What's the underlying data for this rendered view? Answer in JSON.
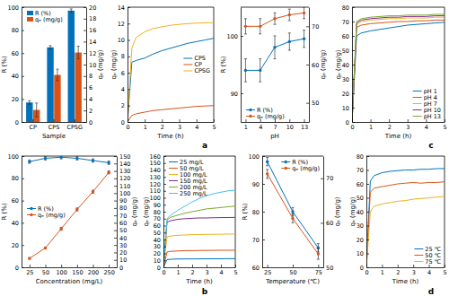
{
  "chart_data": [
    {
      "type": "bar",
      "xlabel": "Sample",
      "ylabel": "R (%)",
      "y2label": "qₑ (mg/g)",
      "categories": [
        "CP",
        "CPS",
        "CPSG"
      ],
      "ylim": [
        0,
        100
      ],
      "yticks": [
        0,
        20,
        40,
        60,
        80,
        100
      ],
      "y2lim": [
        0,
        20
      ],
      "y2ticks": [
        0,
        2,
        4,
        6,
        8,
        10,
        12,
        14,
        16,
        18,
        20
      ],
      "legend": "upper-left",
      "series": [
        {
          "name": "R (%)",
          "color": "#0072bd",
          "values": [
            17,
            65,
            97
          ],
          "errors": [
            1.5,
            1.5,
            1.5
          ]
        },
        {
          "name": "qₑ (mg/g)",
          "color": "#d95319",
          "axis": "y2",
          "values": [
            2.1,
            8.2,
            12.1
          ],
          "errors": [
            1.2,
            1,
            1.1
          ]
        }
      ]
    },
    {
      "type": "line",
      "xlabel": "Time (h)",
      "ylabel": "qₑ (mg/g)",
      "x": [
        0,
        0.25,
        0.5,
        1,
        1.5,
        2,
        2.5,
        3,
        3.5,
        4,
        4.5,
        5
      ],
      "xlim": [
        0,
        5
      ],
      "xticks": [
        0,
        1,
        2,
        3,
        4,
        5
      ],
      "ylim": [
        0,
        14
      ],
      "yticks": [
        0,
        2,
        4,
        6,
        8,
        10,
        12,
        14
      ],
      "legend": "center-right",
      "series": [
        {
          "name": "CPS",
          "color": "#0072bd",
          "values": [
            0,
            7.3,
            7.5,
            7.8,
            8.3,
            8.7,
            9.0,
            9.3,
            9.6,
            9.8,
            10.0,
            10.2
          ]
        },
        {
          "name": "CP",
          "color": "#d95319",
          "values": [
            0,
            0.8,
            1.0,
            1.2,
            1.4,
            1.5,
            1.6,
            1.7,
            1.8,
            1.9,
            1.95,
            2.0
          ]
        },
        {
          "name": "CPSG",
          "color": "#edb120",
          "values": [
            0,
            9.0,
            10.3,
            11.0,
            11.4,
            11.6,
            11.8,
            11.9,
            12.0,
            12.05,
            12.1,
            12.1
          ]
        }
      ],
      "annotations": [
        "a"
      ]
    },
    {
      "type": "line",
      "xlabel": "pH",
      "ylabel": "R (%)",
      "y2label": "qₑ (mg/g)",
      "x": [
        1,
        4,
        7,
        10,
        13
      ],
      "xlim": [
        0,
        14
      ],
      "xticks": [
        1,
        4,
        7,
        10,
        13
      ],
      "ylim": [
        85,
        105
      ],
      "yticks": [
        90,
        100
      ],
      "y2lim": [
        45,
        75
      ],
      "y2ticks": [
        50,
        60,
        70
      ],
      "legend": "lower-left",
      "series": [
        {
          "name": "R (%)",
          "color": "#0072bd",
          "marker": "circle",
          "values": [
            94,
            94,
            98,
            99,
            99.5
          ],
          "errors": [
            2,
            2,
            2,
            1.5,
            1.5
          ]
        },
        {
          "name": "qₑ (mg/g)",
          "color": "#d95319",
          "marker": "circle",
          "axis": "y2",
          "values": [
            70,
            70,
            72,
            73,
            73.5
          ],
          "errors": [
            2,
            2,
            1.5,
            1.5,
            1.5
          ]
        }
      ]
    },
    {
      "type": "line",
      "xlabel": "Time (h)",
      "ylabel": "qₑ (mg/g)",
      "x": [
        0,
        0.25,
        0.5,
        1,
        1.5,
        2,
        2.5,
        3,
        3.5,
        4,
        4.5,
        5
      ],
      "xlim": [
        0,
        5
      ],
      "xticks": [
        0,
        1,
        2,
        3,
        4,
        5
      ],
      "ylim": [
        0,
        80
      ],
      "yticks": [
        0,
        10,
        20,
        30,
        40,
        50,
        60,
        70,
        80
      ],
      "legend": "lower-right",
      "series": [
        {
          "name": "pH 1",
          "color": "#0072bd",
          "values": [
            0,
            60,
            62,
            63.5,
            64.5,
            65.5,
            66.5,
            67.5,
            68,
            68.5,
            69,
            69.5
          ]
        },
        {
          "name": "pH 4",
          "color": "#d95319",
          "values": [
            0,
            66,
            67.5,
            68.5,
            69,
            69.5,
            70,
            70,
            70.5,
            70.5,
            71,
            71
          ]
        },
        {
          "name": "pH 7",
          "color": "#edb120",
          "values": [
            0,
            68,
            70,
            71,
            71.5,
            72,
            72,
            72.5,
            72.5,
            72.5,
            73,
            73
          ]
        },
        {
          "name": "pH 10",
          "color": "#7e2f8e",
          "values": [
            0,
            69,
            71,
            72,
            72.5,
            73,
            73,
            73.5,
            73.5,
            73.5,
            74,
            74
          ]
        },
        {
          "name": "pH 13",
          "color": "#77ac30",
          "values": [
            0,
            70,
            72,
            73,
            73.5,
            74,
            74,
            74.5,
            74.5,
            74.5,
            75,
            75
          ]
        }
      ],
      "annotations": [
        "c"
      ]
    },
    {
      "type": "line",
      "xlabel": "Concentration (mg/L)",
      "ylabel": "R (%)",
      "y2label": "qₑ (mg/g)",
      "categories": [
        "25",
        "50",
        "100",
        "150",
        "200",
        "250"
      ],
      "ylim": [
        0,
        100
      ],
      "yticks": [
        0,
        20,
        40,
        60,
        80,
        100
      ],
      "y2lim": [
        0,
        150
      ],
      "y2ticks": [
        0,
        10,
        20,
        30,
        40,
        50,
        60,
        70,
        80,
        90,
        100,
        110,
        120,
        130,
        140,
        150
      ],
      "legend": "center-left",
      "series": [
        {
          "name": "R (%)",
          "color": "#0072bd",
          "marker": "circle",
          "values": [
            95,
            98,
            99,
            98,
            96,
            94
          ],
          "errors": [
            1.5,
            1.5,
            1.5,
            1.5,
            1.5,
            1.5
          ]
        },
        {
          "name": "qₑ (mg/g)",
          "color": "#d95319",
          "marker": "circle",
          "axis": "y2",
          "values": [
            12,
            26,
            52,
            78,
            102,
            128
          ],
          "errors": [
            1,
            1,
            2,
            2,
            2,
            2
          ]
        }
      ]
    },
    {
      "type": "line",
      "xlabel": "Time (h)",
      "ylabel": "qₑ (mg/g)",
      "x": [
        0,
        0.25,
        0.5,
        1,
        1.5,
        2,
        2.5,
        3,
        3.5,
        4,
        4.5,
        5
      ],
      "xlim": [
        0,
        5
      ],
      "xticks": [
        0,
        1,
        2,
        3,
        4,
        5
      ],
      "ylim": [
        0,
        160
      ],
      "yticks": [
        0,
        10,
        20,
        30,
        40,
        50,
        60,
        70,
        80,
        90,
        100,
        110,
        120,
        130,
        140,
        150,
        160
      ],
      "legend": "upper-left",
      "series": [
        {
          "name": "25 mg/L",
          "color": "#0072bd",
          "values": [
            0,
            11,
            11.5,
            12,
            12,
            12,
            12.2,
            12.2,
            12.3,
            12.3,
            12.4,
            12.4
          ]
        },
        {
          "name": "50 mg/L",
          "color": "#d95319",
          "values": [
            0,
            22,
            23,
            23.5,
            24,
            24,
            24.2,
            24.3,
            24.4,
            24.5,
            24.5,
            24.6
          ]
        },
        {
          "name": "100 mg/L",
          "color": "#edb120",
          "values": [
            0,
            44,
            45,
            46,
            46.5,
            47,
            47,
            47.3,
            47.5,
            47.6,
            47.8,
            48
          ]
        },
        {
          "name": "150 mg/L",
          "color": "#7e2f8e",
          "values": [
            0,
            65,
            67,
            69,
            70,
            70.5,
            71,
            71,
            71.3,
            71.5,
            71.6,
            71.8
          ]
        },
        {
          "name": "200 mg/L",
          "color": "#77ac30",
          "values": [
            0,
            68,
            72,
            75,
            78,
            80,
            82,
            84,
            85,
            86,
            87,
            88
          ]
        },
        {
          "name": "250 mg/L",
          "color": "#4dbeee",
          "values": [
            0,
            70,
            75,
            82,
            88,
            94,
            99,
            103,
            106,
            108,
            110,
            111
          ]
        }
      ],
      "annotations": [
        "b"
      ]
    },
    {
      "type": "line",
      "xlabel": "Temperature (℃)",
      "ylabel": "R (%)",
      "y2label": "qₑ (mg/g)",
      "x": [
        25,
        50,
        75
      ],
      "xlim": [
        20,
        80
      ],
      "xticks": [
        25,
        50,
        75
      ],
      "ylim": [
        60,
        100
      ],
      "yticks": [
        60,
        70,
        80,
        90,
        100
      ],
      "y2lim": [
        50,
        75
      ],
      "y2ticks": [
        50,
        60,
        70
      ],
      "legend": "upper-right",
      "series": [
        {
          "name": "R (%)",
          "color": "#0072bd",
          "marker": "circle",
          "values": [
            98,
            80,
            67
          ],
          "errors": [
            1.5,
            1.5,
            1.5
          ]
        },
        {
          "name": "qₑ (mg/g)",
          "color": "#d95319",
          "marker": "circle",
          "axis": "y2",
          "values": [
            71,
            61,
            53
          ],
          "errors": [
            1,
            1,
            1.2
          ]
        }
      ]
    },
    {
      "type": "line",
      "xlabel": "Time (h)",
      "ylabel": "qₑ (mg/g)",
      "x": [
        0,
        0.25,
        0.5,
        1,
        1.5,
        2,
        2.5,
        3,
        3.5,
        4,
        4.5,
        5
      ],
      "xlim": [
        0,
        5
      ],
      "xticks": [
        0,
        1,
        2,
        3,
        4,
        5
      ],
      "ylim": [
        0,
        80
      ],
      "yticks": [
        0,
        10,
        20,
        30,
        40,
        50,
        60,
        70,
        80
      ],
      "legend": "lower-right",
      "series": [
        {
          "name": "25 ℃",
          "color": "#0072bd",
          "values": [
            0,
            62,
            66,
            68,
            69,
            69.5,
            70,
            70,
            70.5,
            70.5,
            71,
            71
          ]
        },
        {
          "name": "50 ℃",
          "color": "#d95319",
          "values": [
            0,
            54,
            57,
            58,
            59,
            60,
            60.5,
            61,
            60.5,
            61,
            61,
            61.5
          ]
        },
        {
          "name": "75 ℃",
          "color": "#edb120",
          "values": [
            0,
            40,
            44,
            45.5,
            46.5,
            47.5,
            48,
            49,
            49.5,
            50,
            50.5,
            51
          ]
        }
      ],
      "annotations": [
        "d"
      ]
    }
  ]
}
